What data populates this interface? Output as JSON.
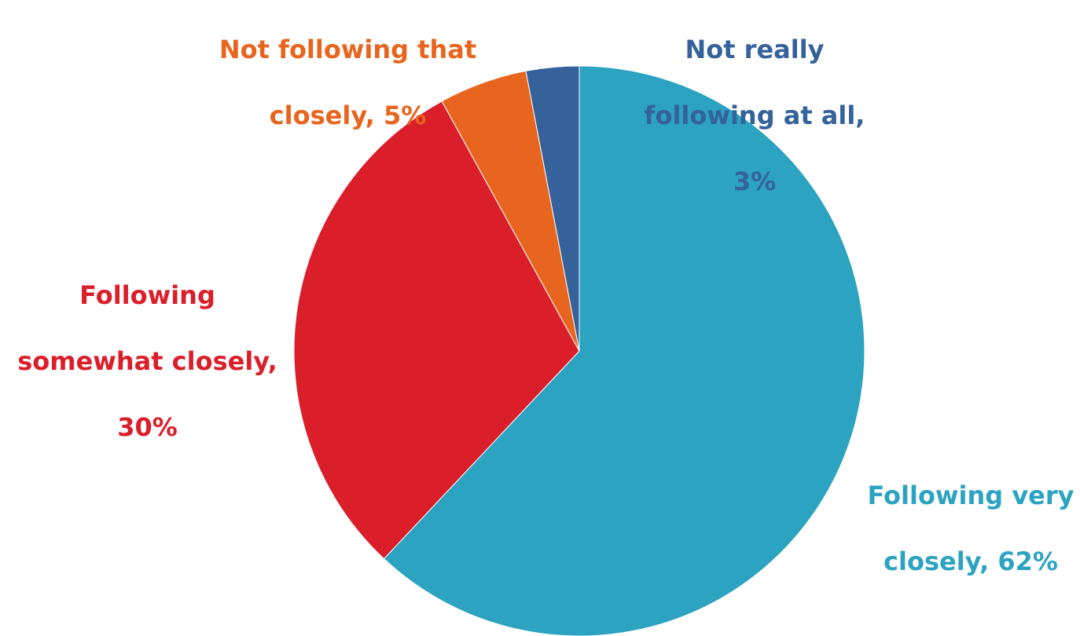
{
  "chart_data": {
    "type": "pie",
    "title": "",
    "start_angle_deg": 0,
    "direction": "clockwise",
    "slices": [
      {
        "label": "Following very closely",
        "value": 62,
        "display": "62%",
        "color": "#2ca3c1"
      },
      {
        "label": "Following somewhat closely",
        "value": 30,
        "display": "30%",
        "color": "#da1f2a"
      },
      {
        "label": "Not following that closely",
        "value": 5,
        "display": "5%",
        "color": "#e8651f"
      },
      {
        "label": "Not really following at all",
        "value": 3,
        "display": "3%",
        "color": "#35629a"
      }
    ]
  },
  "labels": [
    {
      "lines": [
        "Following very",
        "closely, 62%"
      ]
    },
    {
      "lines": [
        "Following",
        "somewhat closely,",
        "30%"
      ]
    },
    {
      "lines": [
        "Not following that",
        "closely, 5%"
      ]
    },
    {
      "lines": [
        "Not really",
        "following at all,",
        "3%"
      ]
    }
  ]
}
